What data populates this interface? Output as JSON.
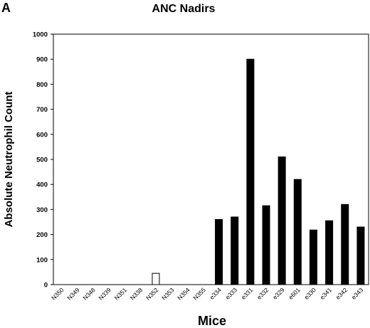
{
  "panel_label": "A",
  "chart_data": {
    "type": "bar",
    "title": "ANC Nadirs",
    "xlabel": "Mice",
    "ylabel": "Absolute Neutrophil Count",
    "ylim": [
      0,
      1000
    ],
    "yticks": [
      0,
      100,
      200,
      300,
      400,
      500,
      600,
      700,
      800,
      900,
      1000
    ],
    "grid": false,
    "categories": [
      "N350",
      "N349",
      "N348",
      "N339",
      "N351",
      "N338",
      "N352",
      "N353",
      "N354",
      "N355",
      "e334",
      "e333",
      "e331",
      "e332",
      "e329",
      "e601",
      "e330",
      "e341",
      "e342",
      "e343"
    ],
    "values": [
      0,
      0,
      0,
      0,
      0,
      0,
      45,
      0,
      0,
      0,
      260,
      270,
      900,
      315,
      510,
      420,
      218,
      255,
      320,
      230
    ],
    "bar_fill": [
      "#ffffff",
      "#ffffff",
      "#ffffff",
      "#ffffff",
      "#ffffff",
      "#ffffff",
      "#ffffff",
      "#ffffff",
      "#ffffff",
      "#ffffff",
      "#000000",
      "#000000",
      "#000000",
      "#000000",
      "#000000",
      "#000000",
      "#000000",
      "#000000",
      "#000000",
      "#000000"
    ]
  }
}
